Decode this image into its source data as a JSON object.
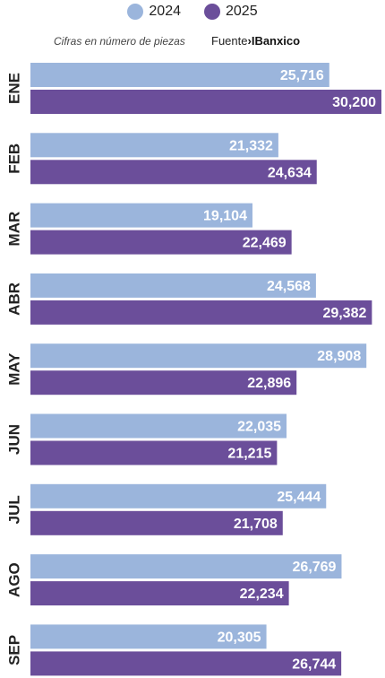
{
  "legend": {
    "items": [
      {
        "label": "2024",
        "color": "#9bb5dc"
      },
      {
        "label": "2025",
        "color": "#6b4e9a"
      }
    ]
  },
  "note": "Cifras en número de piezas",
  "source": {
    "prefix": "Fuente",
    "name": "Banxico"
  },
  "chart_data": {
    "type": "bar",
    "orientation": "horizontal",
    "categories": [
      "ENE",
      "FEB",
      "MAR",
      "ABR",
      "MAY",
      "JUN",
      "JUL",
      "AGO",
      "SEP"
    ],
    "series": [
      {
        "name": "2024",
        "color": "#9bb5dc",
        "values": [
          25716,
          21332,
          19104,
          24568,
          28908,
          22035,
          25444,
          26769,
          20305
        ]
      },
      {
        "name": "2025",
        "color": "#6b4e9a",
        "values": [
          30200,
          24634,
          22469,
          29382,
          22896,
          21215,
          21708,
          22234,
          26744
        ]
      }
    ],
    "value_labels": {
      "2024": [
        "25,716",
        "21,332",
        "19,104",
        "24,568",
        "28,908",
        "22,035",
        "25,444",
        "26,769",
        "20,305"
      ],
      "2025": [
        "30,200",
        "24,634",
        "22,469",
        "29,382",
        "22,896",
        "21,215",
        "21,708",
        "22,234",
        "26,744"
      ]
    },
    "grid": false,
    "legend_position": "top-center"
  }
}
